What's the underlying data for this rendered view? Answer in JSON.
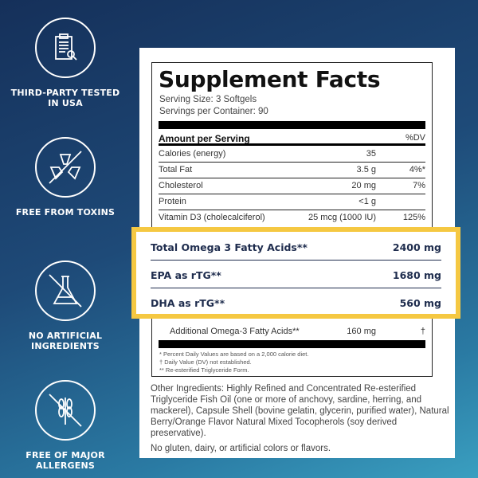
{
  "badges": [
    {
      "icon": "clipboard-search-icon",
      "label": "THIRD-PARTY TESTED IN USA"
    },
    {
      "icon": "no-toxins-icon",
      "label": "FREE FROM TOXINS"
    },
    {
      "icon": "no-flask-icon",
      "label": "NO ARTIFICIAL INGREDIENTS"
    },
    {
      "icon": "no-wheat-icon",
      "label": "FREE OF MAJOR ALLERGENS"
    }
  ],
  "facts": {
    "title": "Supplement Facts",
    "serving_size": "Serving Size: 3 Softgels",
    "servings_per_container": "Servings per Container: 90",
    "header_amount": "Amount per Serving",
    "header_dv": "%DV",
    "rows": [
      {
        "name": "Calories (energy)",
        "amount": "35",
        "dv": ""
      },
      {
        "name": "Total Fat",
        "amount": "3.5 g",
        "dv": "4%*"
      },
      {
        "name": "Cholesterol",
        "amount": "20 mg",
        "dv": "7%"
      },
      {
        "name": "Protein",
        "amount": "<1 g",
        "dv": ""
      },
      {
        "name": "Vitamin D3 (cholecalciferol)",
        "amount": "25 mcg (1000 IU)",
        "dv": "125%"
      }
    ],
    "highlight": [
      {
        "name": "Total Omega 3 Fatty Acids**",
        "amount": "2400 mg"
      },
      {
        "name": "EPA as rTG**",
        "amount": "1680 mg"
      },
      {
        "name": "DHA as rTG**",
        "amount": "560 mg"
      }
    ],
    "additional": {
      "name": "Additional Omega-3 Fatty Acids**",
      "amount": "160 mg",
      "dv": "†"
    },
    "footnotes": [
      "* Percent Daily Values are based on a 2,000 calorie diet.",
      "† Daily Value (DV) not established.",
      "** Re-esterified Triglyceride Form."
    ],
    "other_ingredients": "Other Ingredients: Highly Refined and Concentrated Re-esterified Triglyceride Fish Oil (one or more of anchovy, sardine, herring, and mackerel), Capsule Shell (bovine gelatin, glycerin, purified water), Natural Berry/Orange Flavor Natural Mixed Tocopherols (soy derived preservative).",
    "free_of": "No gluten, dairy, or artificial colors or flavors."
  },
  "colors": {
    "highlight_border": "#f5c842",
    "highlight_text": "#1f2d4e"
  }
}
